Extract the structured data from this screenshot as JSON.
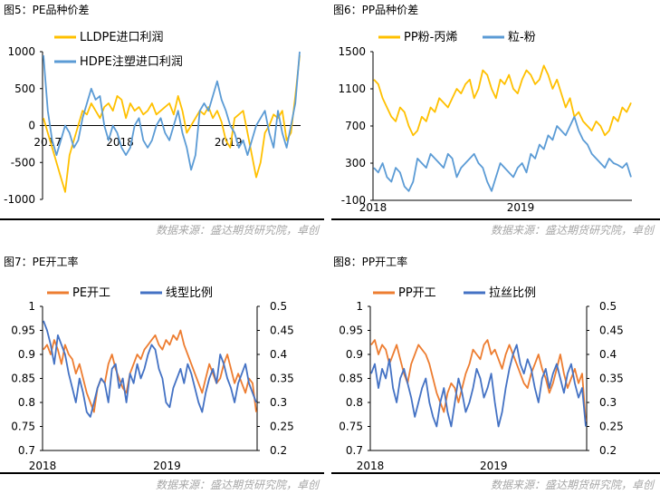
{
  "source_note": "数据来源：盛达期货研究院，卓创",
  "colors": {
    "orange": "#ED7D31",
    "blue": "#4472C4",
    "gold": "#FFC000",
    "steel": "#5B9BD5",
    "rule": "#000000",
    "note": "#A6A6A6"
  },
  "chart_data": [
    {
      "id": "fig5",
      "type": "line",
      "title": "图5：PE品种价差",
      "xlabel": "",
      "ylabel": "",
      "x_ticks": [
        "2017",
        "2018",
        "2019"
      ],
      "ylim": [
        -1000,
        1000
      ],
      "y_ticks": [
        1000,
        500,
        0,
        -500,
        -1000
      ],
      "legend": "top",
      "series": [
        {
          "name": "LLDPE进口利润",
          "color": "#FFC000",
          "values": [
            100,
            -100,
            -300,
            -500,
            -700,
            -900,
            -400,
            -200,
            0,
            200,
            150,
            300,
            200,
            100,
            250,
            300,
            200,
            400,
            350,
            100,
            300,
            200,
            250,
            150,
            200,
            300,
            150,
            200,
            250,
            300,
            150,
            400,
            200,
            -100,
            0,
            100,
            200,
            150,
            250,
            100,
            200,
            50,
            -200,
            -300,
            100,
            150,
            200,
            -100,
            -400,
            -700,
            -500,
            -100,
            0,
            150,
            100,
            200,
            -200,
            -100,
            400,
            950
          ]
        },
        {
          "name": "HDPE注塑进口利润",
          "color": "#5B9BD5",
          "values": [
            950,
            200,
            -200,
            -400,
            -200,
            0,
            -100,
            -300,
            -200,
            100,
            300,
            500,
            350,
            400,
            0,
            -200,
            0,
            -100,
            -300,
            -400,
            -300,
            0,
            100,
            -200,
            -300,
            -200,
            0,
            100,
            -100,
            -200,
            0,
            200,
            -100,
            -300,
            -600,
            -400,
            200,
            300,
            200,
            400,
            600,
            350,
            200,
            0,
            -100,
            -300,
            -200,
            -400,
            -200,
            0,
            100,
            200,
            -100,
            -300,
            200,
            -100,
            -300,
            0,
            300,
            1000
          ]
        }
      ]
    },
    {
      "id": "fig6",
      "type": "line",
      "title": "图6：PP品种价差",
      "xlabel": "",
      "ylabel": "",
      "x_ticks": [
        "2018",
        "2019"
      ],
      "ylim": [
        -100,
        1500
      ],
      "y_ticks": [
        1500,
        1100,
        700,
        300,
        -100
      ],
      "legend": "top",
      "series": [
        {
          "name": "PP粉-丙烯",
          "color": "#FFC000",
          "values": [
            1200,
            1150,
            1000,
            900,
            800,
            750,
            900,
            850,
            700,
            600,
            650,
            800,
            750,
            900,
            850,
            1000,
            950,
            900,
            1000,
            1100,
            1050,
            1150,
            1200,
            1000,
            1100,
            1300,
            1250,
            1100,
            1000,
            1200,
            1150,
            1250,
            1100,
            1050,
            1200,
            1300,
            1250,
            1150,
            1200,
            1350,
            1250,
            1100,
            1200,
            1050,
            900,
            1000,
            800,
            850,
            750,
            700,
            650,
            750,
            700,
            600,
            650,
            800,
            750,
            900,
            850,
            950
          ]
        },
        {
          "name": "粒-粉",
          "color": "#5B9BD5",
          "values": [
            250,
            200,
            300,
            150,
            100,
            250,
            200,
            50,
            0,
            100,
            350,
            300,
            250,
            400,
            350,
            300,
            250,
            400,
            350,
            150,
            250,
            300,
            350,
            400,
            300,
            250,
            100,
            0,
            150,
            300,
            250,
            200,
            150,
            250,
            300,
            200,
            400,
            350,
            500,
            450,
            600,
            550,
            700,
            650,
            600,
            700,
            800,
            650,
            550,
            500,
            400,
            350,
            300,
            250,
            350,
            300,
            280,
            250,
            300,
            150
          ]
        }
      ]
    },
    {
      "id": "fig7",
      "type": "line",
      "title": "图7：PE开工率",
      "xlabel": "",
      "ylabel": "",
      "x_ticks": [
        "2018",
        "2019"
      ],
      "ylim": [
        0.7,
        1
      ],
      "y_ticks": [
        1,
        0.95,
        0.9,
        0.85,
        0.8,
        0.75,
        0.7
      ],
      "ylim_right": [
        0.2,
        0.5
      ],
      "y_ticks_right": [
        0.5,
        0.45,
        0.4,
        0.35,
        0.3,
        0.25,
        0.2
      ],
      "legend": "top",
      "series": [
        {
          "name": "PE开工",
          "color": "#ED7D31",
          "axis": "left",
          "values": [
            0.91,
            0.92,
            0.9,
            0.93,
            0.91,
            0.88,
            0.92,
            0.9,
            0.89,
            0.86,
            0.88,
            0.85,
            0.82,
            0.8,
            0.78,
            0.83,
            0.85,
            0.84,
            0.88,
            0.9,
            0.87,
            0.85,
            0.83,
            0.82,
            0.86,
            0.88,
            0.9,
            0.89,
            0.91,
            0.92,
            0.93,
            0.94,
            0.92,
            0.91,
            0.93,
            0.92,
            0.94,
            0.93,
            0.95,
            0.92,
            0.9,
            0.88,
            0.86,
            0.84,
            0.82,
            0.85,
            0.88,
            0.86,
            0.84,
            0.85,
            0.88,
            0.9,
            0.87,
            0.84,
            0.86,
            0.84,
            0.82,
            0.85,
            0.84,
            0.78
          ]
        },
        {
          "name": "线型比例",
          "color": "#4472C4",
          "axis": "right",
          "values": [
            0.47,
            0.45,
            0.42,
            0.38,
            0.44,
            0.42,
            0.4,
            0.36,
            0.33,
            0.3,
            0.35,
            0.32,
            0.28,
            0.27,
            0.3,
            0.33,
            0.35,
            0.34,
            0.3,
            0.37,
            0.38,
            0.33,
            0.35,
            0.3,
            0.36,
            0.34,
            0.38,
            0.35,
            0.37,
            0.4,
            0.42,
            0.41,
            0.37,
            0.35,
            0.3,
            0.29,
            0.33,
            0.35,
            0.37,
            0.34,
            0.38,
            0.36,
            0.33,
            0.3,
            0.28,
            0.32,
            0.35,
            0.37,
            0.34,
            0.4,
            0.38,
            0.35,
            0.33,
            0.3,
            0.34,
            0.36,
            0.38,
            0.34,
            0.32,
            0.3
          ]
        }
      ]
    },
    {
      "id": "fig8",
      "type": "line",
      "title": "图8：PP开工率",
      "xlabel": "",
      "ylabel": "",
      "x_ticks": [
        "2018",
        "2019"
      ],
      "ylim": [
        0.7,
        1
      ],
      "y_ticks": [
        1,
        0.95,
        0.9,
        0.85,
        0.8,
        0.75,
        0.7
      ],
      "ylim_right": [
        0.2,
        0.5
      ],
      "y_ticks_right": [
        0.5,
        0.45,
        0.4,
        0.35,
        0.3,
        0.25,
        0.2
      ],
      "legend": "top",
      "series": [
        {
          "name": "PP开工",
          "color": "#ED7D31",
          "axis": "left",
          "values": [
            0.92,
            0.93,
            0.9,
            0.92,
            0.91,
            0.88,
            0.9,
            0.92,
            0.89,
            0.86,
            0.84,
            0.88,
            0.9,
            0.92,
            0.91,
            0.9,
            0.88,
            0.85,
            0.82,
            0.8,
            0.78,
            0.82,
            0.84,
            0.83,
            0.8,
            0.83,
            0.86,
            0.88,
            0.91,
            0.9,
            0.89,
            0.92,
            0.93,
            0.9,
            0.91,
            0.89,
            0.87,
            0.9,
            0.92,
            0.9,
            0.88,
            0.86,
            0.84,
            0.83,
            0.86,
            0.88,
            0.9,
            0.87,
            0.85,
            0.82,
            0.84,
            0.87,
            0.9,
            0.86,
            0.83,
            0.85,
            0.87,
            0.84,
            0.86,
            0.76
          ]
        },
        {
          "name": "拉丝比例",
          "color": "#4472C4",
          "axis": "right",
          "values": [
            0.36,
            0.38,
            0.33,
            0.37,
            0.35,
            0.39,
            0.33,
            0.3,
            0.35,
            0.37,
            0.34,
            0.31,
            0.27,
            0.3,
            0.33,
            0.35,
            0.3,
            0.27,
            0.25,
            0.3,
            0.33,
            0.28,
            0.25,
            0.3,
            0.35,
            0.32,
            0.28,
            0.3,
            0.33,
            0.37,
            0.35,
            0.31,
            0.33,
            0.36,
            0.3,
            0.25,
            0.28,
            0.33,
            0.37,
            0.4,
            0.42,
            0.38,
            0.36,
            0.39,
            0.37,
            0.33,
            0.3,
            0.35,
            0.37,
            0.33,
            0.36,
            0.38,
            0.35,
            0.32,
            0.36,
            0.38,
            0.34,
            0.31,
            0.33,
            0.25
          ]
        }
      ]
    }
  ]
}
